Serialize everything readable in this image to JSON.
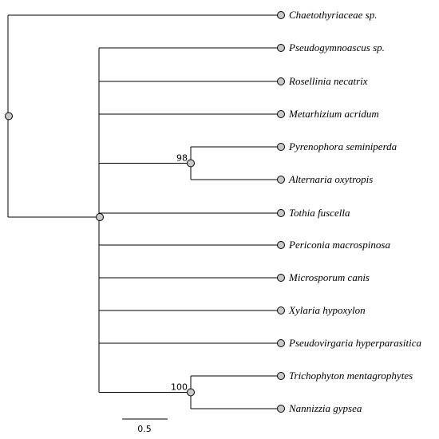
{
  "tree": {
    "taxa": [
      "Chaetothyriaceae sp.",
      "Pseudogymnoascus sp.",
      "Rosellinia necatrix",
      "Metarhizium acridum",
      "Pyrenophora seminiperda",
      "Alternaria oxytropis",
      "Tothia fuscella",
      "Periconia macrospinosa",
      "Microsporum canis",
      "Xylaria hypoxylon",
      "Pseudovirgaria hyperparasitica",
      "Trichophyton mentagrophytes",
      "Nannizzia gypsea"
    ],
    "support": [
      "98",
      "100"
    ],
    "scale_bar": "0.5"
  }
}
